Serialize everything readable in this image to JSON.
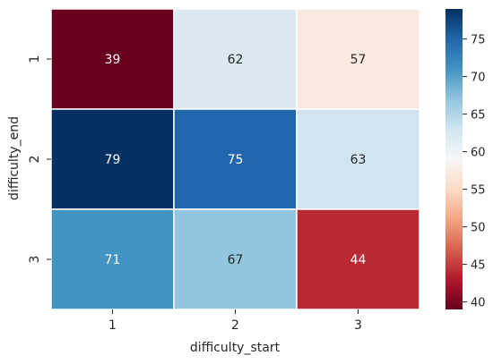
{
  "chart_data": {
    "type": "heatmap",
    "xlabel": "difficulty_start",
    "ylabel": "difficulty_end",
    "x_categories": [
      "1",
      "2",
      "3"
    ],
    "y_categories": [
      "1",
      "2",
      "3"
    ],
    "values": [
      [
        39,
        62,
        57
      ],
      [
        79,
        75,
        63
      ],
      [
        71,
        67,
        44
      ]
    ],
    "cell_labels": [
      [
        "39",
        "62",
        "57"
      ],
      [
        "79",
        "75",
        "63"
      ],
      [
        "71",
        "67",
        "44"
      ]
    ],
    "colormap": "RdBu",
    "colorbar": {
      "range": [
        39,
        79
      ],
      "ticks": [
        40,
        45,
        50,
        55,
        60,
        65,
        70,
        75
      ],
      "tick_labels": [
        "40",
        "45",
        "50",
        "55",
        "60",
        "65",
        "70",
        "75"
      ],
      "position": "right"
    },
    "cell_border_color": "#ffffff",
    "grid": false
  }
}
